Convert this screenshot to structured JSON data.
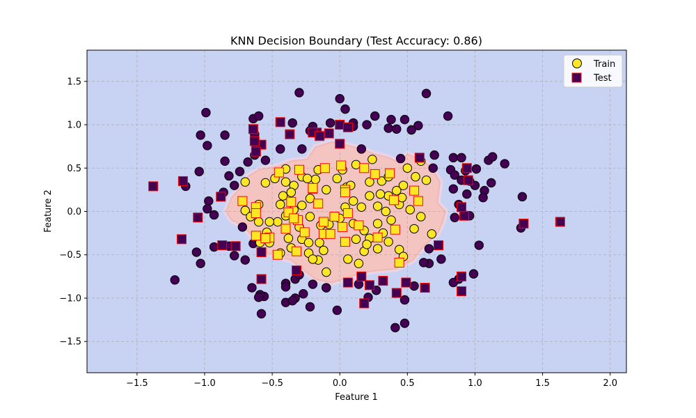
{
  "chart_data": {
    "type": "scatter",
    "title": "KNN Decision Boundary (Test Accuracy: 0.86)",
    "xlabel": "Feature 1",
    "ylabel": "Feature 2",
    "xlim": [
      -1.87,
      2.12
    ],
    "ylim": [
      -1.86,
      1.86
    ],
    "x_ticks": [
      -1.5,
      -1.0,
      -0.5,
      0.0,
      0.5,
      1.0,
      1.5,
      2.0
    ],
    "y_ticks": [
      -1.5,
      -1.0,
      -0.5,
      0.0,
      0.5,
      1.0,
      1.5
    ],
    "x_tick_labels": [
      "−1.5",
      "−1.0",
      "−0.5",
      "0.0",
      "0.5",
      "1.0",
      "1.5",
      "2.0"
    ],
    "y_tick_labels": [
      "−1.5",
      "−1.0",
      "−0.5",
      "0.0",
      "0.5",
      "1.0",
      "1.5"
    ],
    "grid": true,
    "legend_position": "top-right",
    "colors": {
      "background_region": "#c8d3f3",
      "inner_region": "#f4c4c0",
      "inner_region_edge": "#e8d4e6",
      "class0": "#440154",
      "class1": "#fde725",
      "test_edge": "#ff0000",
      "train_edge": "#000000"
    },
    "decision_region_class1": [
      [
        -0.84,
        0.0
      ],
      [
        -0.8,
        0.16
      ],
      [
        -0.74,
        0.26
      ],
      [
        -0.68,
        0.4
      ],
      [
        -0.6,
        0.48
      ],
      [
        -0.46,
        0.52
      ],
      [
        -0.36,
        0.58
      ],
      [
        -0.24,
        0.6
      ],
      [
        -0.18,
        0.74
      ],
      [
        -0.06,
        0.8
      ],
      [
        0.06,
        0.76
      ],
      [
        0.16,
        0.72
      ],
      [
        0.26,
        0.66
      ],
      [
        0.36,
        0.62
      ],
      [
        0.44,
        0.56
      ],
      [
        0.5,
        0.66
      ],
      [
        0.62,
        0.58
      ],
      [
        0.68,
        0.5
      ],
      [
        0.74,
        0.34
      ],
      [
        0.72,
        0.1
      ],
      [
        0.78,
        0.0
      ],
      [
        0.76,
        -0.12
      ],
      [
        0.72,
        -0.26
      ],
      [
        0.62,
        -0.4
      ],
      [
        0.54,
        -0.56
      ],
      [
        0.42,
        -0.66
      ],
      [
        0.28,
        -0.68
      ],
      [
        0.18,
        -0.7
      ],
      [
        0.06,
        -0.76
      ],
      [
        -0.06,
        -0.82
      ],
      [
        -0.18,
        -0.78
      ],
      [
        -0.28,
        -0.66
      ],
      [
        -0.36,
        -0.56
      ],
      [
        -0.46,
        -0.52
      ],
      [
        -0.56,
        -0.46
      ],
      [
        -0.62,
        -0.36
      ],
      [
        -0.66,
        -0.26
      ],
      [
        -0.72,
        -0.16
      ],
      [
        -0.8,
        -0.1
      ]
    ],
    "series": [
      {
        "name": "Train",
        "marker": "circle",
        "points": [
          [
            -0.64,
            1.07
          ],
          [
            -0.6,
            1.1
          ],
          [
            -0.35,
            1.02
          ],
          [
            -0.2,
            0.98
          ],
          [
            0.0,
            1.3
          ],
          [
            0.04,
            1.18
          ],
          [
            0.1,
            1.02
          ],
          [
            0.2,
            1.0
          ],
          [
            0.26,
            1.1
          ],
          [
            0.38,
            1.06
          ],
          [
            0.48,
            1.06
          ],
          [
            0.58,
            0.99
          ],
          [
            0.64,
            1.36
          ],
          [
            0.8,
            1.1
          ],
          [
            -0.99,
            1.14
          ],
          [
            -1.03,
            0.88
          ],
          [
            -0.85,
            0.88
          ],
          [
            -0.98,
            0.76
          ],
          [
            -1.04,
            0.46
          ],
          [
            -0.97,
            0.12
          ],
          [
            -0.98,
            0.03
          ],
          [
            -0.93,
            -0.04
          ],
          [
            -0.86,
            0.22
          ],
          [
            -0.82,
            0.41
          ],
          [
            -0.78,
            0.3
          ],
          [
            -0.7,
            0.34
          ],
          [
            -0.74,
            0.46
          ],
          [
            -0.68,
            0.57
          ],
          [
            -0.85,
            0.58
          ],
          [
            -0.62,
            0.73
          ],
          [
            -0.63,
            0.65
          ],
          [
            -0.55,
            0.59
          ],
          [
            -0.44,
            0.72
          ],
          [
            -0.4,
            0.49
          ],
          [
            -0.28,
            0.72
          ],
          [
            -0.22,
            0.93
          ],
          [
            -0.14,
            0.87
          ],
          [
            0.16,
            0.72
          ],
          [
            0.6,
            0.58
          ],
          [
            0.7,
            0.65
          ],
          [
            0.84,
            0.62
          ],
          [
            0.9,
            0.62
          ],
          [
            0.93,
            0.47
          ],
          [
            1.01,
            0.49
          ],
          [
            0.96,
            0.35
          ],
          [
            1.0,
            0.3
          ],
          [
            1.07,
            0.24
          ],
          [
            1.06,
            0.16
          ],
          [
            1.12,
            0.33
          ],
          [
            1.1,
            0.59
          ],
          [
            1.13,
            0.63
          ],
          [
            1.22,
            0.55
          ],
          [
            0.84,
            0.26
          ],
          [
            0.88,
            0.08
          ],
          [
            0.96,
            -0.05
          ],
          [
            0.85,
            -0.07
          ],
          [
            1.34,
            -0.19
          ],
          [
            1.35,
            0.17
          ],
          [
            1.03,
            -0.39
          ],
          [
            0.99,
            -0.72
          ],
          [
            0.88,
            -0.78
          ],
          [
            0.84,
            -0.82
          ],
          [
            0.75,
            -0.55
          ],
          [
            0.66,
            -0.6
          ],
          [
            0.66,
            -0.43
          ],
          [
            0.62,
            -0.59
          ],
          [
            0.55,
            -0.86
          ],
          [
            0.48,
            -1.02
          ],
          [
            0.48,
            -1.29
          ],
          [
            0.41,
            -1.34
          ],
          [
            0.27,
            -0.91
          ],
          [
            0.21,
            -0.99
          ],
          [
            0.14,
            -0.84
          ],
          [
            -0.02,
            -1.14
          ],
          [
            -0.1,
            -0.88
          ],
          [
            -0.22,
            -1.1
          ],
          [
            -0.27,
            -0.95
          ],
          [
            -0.33,
            -1.0
          ],
          [
            -0.4,
            -0.83
          ],
          [
            -0.4,
            -1.05
          ],
          [
            -0.35,
            -1.03
          ],
          [
            -0.33,
            -0.78
          ],
          [
            -0.4,
            -0.87
          ],
          [
            -0.3,
            -0.73
          ],
          [
            -0.2,
            -0.84
          ],
          [
            -0.1,
            -0.88
          ],
          [
            -0.56,
            -0.98
          ],
          [
            -0.59,
            -0.96
          ],
          [
            -0.6,
            -0.99
          ],
          [
            -0.65,
            -0.88
          ],
          [
            -0.58,
            -1.18
          ],
          [
            -1.22,
            -0.79
          ],
          [
            -1.06,
            -0.47
          ],
          [
            -1.03,
            -0.6
          ],
          [
            -0.93,
            -0.41
          ],
          [
            -0.82,
            -0.4
          ],
          [
            -0.78,
            -0.51
          ],
          [
            -0.7,
            -0.56
          ],
          [
            -0.64,
            -0.37
          ],
          [
            -0.59,
            -0.36
          ],
          [
            -1.14,
            0.29
          ],
          [
            -0.63,
            0.89
          ],
          [
            -0.3,
            1.37
          ],
          [
            -0.07,
            1.02
          ],
          [
            0.1,
            0.98
          ],
          [
            0.36,
            0.96
          ],
          [
            0.42,
            0.95
          ],
          [
            0.53,
            0.94
          ],
          [
            0.45,
            0.61
          ],
          [
            0.69,
            0.5
          ],
          [
            0.82,
            0.48
          ],
          [
            0.85,
            0.42
          ],
          [
            0.9,
            0.36
          ],
          [
            0.94,
            0.2
          ],
          [
            -0.16,
            0.48
          ],
          [
            -0.28,
            0.4
          ],
          [
            -0.1,
            0.25
          ],
          [
            0.05,
            0.28
          ],
          [
            0.24,
            0.6
          ],
          [
            0.31,
            0.35
          ],
          [
            0.5,
            0.5
          ],
          [
            0.56,
            0.4
          ],
          [
            0.64,
            0.36
          ],
          [
            0.47,
            0.3
          ],
          [
            0.42,
            0.24
          ],
          [
            0.36,
            0.18
          ],
          [
            0.44,
            0.08
          ],
          [
            0.52,
            0.02
          ],
          [
            0.6,
            -0.06
          ],
          [
            0.68,
            -0.26
          ],
          [
            0.55,
            -0.2
          ],
          [
            0.44,
            -0.44
          ],
          [
            0.47,
            -0.52
          ],
          [
            0.36,
            -0.35
          ],
          [
            0.32,
            -0.25
          ],
          [
            0.28,
            -0.43
          ],
          [
            0.22,
            -0.31
          ],
          [
            0.18,
            -0.46
          ],
          [
            0.12,
            -0.32
          ],
          [
            0.06,
            -0.55
          ],
          [
            0.14,
            -0.6
          ],
          [
            0.2,
            -0.38
          ],
          [
            0.1,
            -0.14
          ],
          [
            0.0,
            -0.08
          ],
          [
            -0.08,
            -0.15
          ],
          [
            -0.12,
            -0.45
          ],
          [
            -0.15,
            -0.36
          ],
          [
            -0.23,
            -0.48
          ],
          [
            -0.28,
            -0.32
          ],
          [
            -0.36,
            -0.42
          ],
          [
            -0.38,
            -0.31
          ],
          [
            -0.44,
            -0.48
          ],
          [
            -0.52,
            -0.36
          ],
          [
            -0.54,
            -0.24
          ],
          [
            -0.46,
            -0.12
          ],
          [
            -0.4,
            -0.05
          ],
          [
            -0.34,
            0.02
          ],
          [
            -0.28,
            0.07
          ],
          [
            -0.22,
            0.15
          ],
          [
            -0.18,
            0.37
          ],
          [
            -0.24,
            0.38
          ],
          [
            -0.34,
            0.3
          ],
          [
            -0.4,
            0.34
          ],
          [
            -0.48,
            0.38
          ],
          [
            -0.55,
            0.33
          ],
          [
            -0.6,
            0.08
          ],
          [
            -0.7,
            0.01
          ],
          [
            -0.66,
            -0.06
          ],
          [
            -0.72,
            -0.18
          ],
          [
            -0.6,
            -0.12
          ],
          [
            -0.52,
            -0.12
          ],
          [
            -0.44,
            0.08
          ],
          [
            -0.42,
            0.18
          ],
          [
            -0.36,
            0.22
          ],
          [
            -0.3,
            -0.18
          ],
          [
            -0.22,
            -0.06
          ],
          [
            -0.14,
            -0.16
          ],
          [
            -0.16,
            -0.56
          ],
          [
            -0.2,
            -0.55
          ],
          [
            -0.23,
            -0.36
          ],
          [
            -0.1,
            -0.7
          ],
          [
            0.04,
            0.05
          ],
          [
            0.1,
            0.12
          ],
          [
            0.16,
            0.05
          ],
          [
            0.22,
            0.18
          ],
          [
            0.28,
            0.06
          ],
          [
            0.34,
            0.0
          ],
          [
            0.38,
            -0.1
          ],
          [
            0.28,
            -0.14
          ],
          [
            0.18,
            -0.22
          ],
          [
            0.08,
            0.3
          ],
          [
            -0.02,
            0.38
          ],
          [
            0.02,
            0.48
          ],
          [
            0.12,
            0.54
          ],
          [
            0.22,
            0.34
          ],
          [
            0.36,
            0.4
          ],
          [
            0.46,
            0.16
          ],
          [
            0.3,
            0.2
          ]
        ]
      },
      {
        "name": "Test",
        "marker": "square",
        "points": [
          [
            -0.44,
            1.03
          ],
          [
            -0.37,
            0.89
          ],
          [
            -0.17,
            0.91
          ],
          [
            0.0,
            1.0
          ],
          [
            0.06,
            0.97
          ],
          [
            -0.64,
            0.95
          ],
          [
            -0.58,
            0.77
          ],
          [
            -0.62,
            0.69
          ],
          [
            -0.45,
            0.45
          ],
          [
            -1.16,
            0.35
          ],
          [
            -1.38,
            0.29
          ],
          [
            -0.88,
            0.17
          ],
          [
            -1.05,
            -0.07
          ],
          [
            -0.62,
            0.05
          ],
          [
            -0.62,
            -0.28
          ],
          [
            -1.17,
            -0.32
          ],
          [
            -0.87,
            -0.39
          ],
          [
            -0.77,
            -0.4
          ],
          [
            -0.58,
            -0.78
          ],
          [
            -0.32,
            -0.68
          ],
          [
            0.06,
            -0.82
          ],
          [
            0.16,
            -0.75
          ],
          [
            0.22,
            -0.85
          ],
          [
            0.32,
            -0.8
          ],
          [
            0.42,
            -0.94
          ],
          [
            0.49,
            -0.82
          ],
          [
            0.63,
            -0.88
          ],
          [
            0.44,
            -0.59
          ],
          [
            0.18,
            -1.06
          ],
          [
            0.73,
            -0.39
          ],
          [
            0.9,
            -0.75
          ],
          [
            0.9,
            -0.92
          ],
          [
            0.92,
            -0.05
          ],
          [
            0.9,
            0.05
          ],
          [
            0.94,
            0.5
          ],
          [
            0.95,
            0.36
          ],
          [
            0.59,
            0.62
          ],
          [
            0.37,
            0.44
          ],
          [
            1.36,
            -0.14
          ],
          [
            1.63,
            -0.12
          ],
          [
            -0.3,
            0.48
          ],
          [
            -0.2,
            0.91
          ],
          [
            -0.15,
            0.87
          ],
          [
            -0.08,
            0.9
          ],
          [
            0.0,
            0.78
          ],
          [
            0.01,
            0.53
          ],
          [
            -0.11,
            0.5
          ],
          [
            0.18,
            0.5
          ],
          [
            0.26,
            0.43
          ],
          [
            -0.63,
            0.81
          ],
          [
            -0.72,
            0.12
          ],
          [
            -0.62,
            -0.02
          ],
          [
            -0.31,
            -0.1
          ],
          [
            -0.12,
            -0.12
          ],
          [
            -0.04,
            -0.06
          ],
          [
            0.02,
            -0.18
          ],
          [
            0.14,
            -0.16
          ],
          [
            0.28,
            -0.3
          ],
          [
            0.41,
            -0.21
          ],
          [
            0.4,
            0.13
          ],
          [
            0.55,
            0.24
          ],
          [
            0.58,
            0.12
          ],
          [
            0.04,
            0.25
          ],
          [
            -0.2,
            0.26
          ],
          [
            -0.16,
            0.09
          ],
          [
            -0.38,
            -0.01
          ],
          [
            -0.4,
            -0.2
          ],
          [
            -0.52,
            -0.3
          ],
          [
            -0.58,
            -0.47
          ],
          [
            -0.46,
            -0.5
          ],
          [
            -0.32,
            -0.46
          ],
          [
            -0.26,
            -0.24
          ],
          [
            -0.12,
            -0.26
          ],
          [
            0.04,
            -0.35
          ],
          [
            0.06,
            -0.02
          ],
          [
            0.04,
            0.22
          ],
          [
            -0.2,
            0.27
          ],
          [
            -0.55,
            -0.31
          ],
          [
            -0.34,
            -0.08
          ],
          [
            -0.07,
            -0.26
          ],
          [
            -0.36,
            0.11
          ]
        ]
      }
    ],
    "legend": [
      "Train",
      "Test"
    ]
  }
}
